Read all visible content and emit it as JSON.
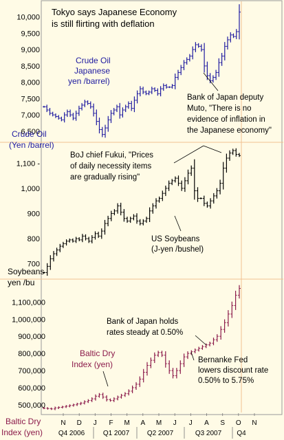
{
  "title_line1": "Tokyo says Japanese Economy",
  "title_line2": "is still flirting with deflation",
  "chart_data": [
    {
      "type": "candlestick",
      "name": "Crude Oil Japanese yen /barrel",
      "series_label": [
        "Crude Oil",
        "Japanese",
        "yen /barrel)"
      ],
      "ylabel": [
        "Crude Oil",
        "(Yen /barrel)"
      ],
      "ylim": [
        6350,
        10350
      ],
      "ticks": [
        6500,
        7000,
        7500,
        8000,
        8500,
        9000,
        9500,
        10000
      ],
      "tick_labels": [
        "6,500",
        "7,000",
        "7,500",
        "8,000",
        "8,500",
        "9,000",
        "9,500",
        "10,000"
      ],
      "values": [
        7250,
        7150,
        7050,
        7000,
        6950,
        6900,
        6850,
        7000,
        7100,
        7000,
        6900,
        7050,
        7200,
        7300,
        7400,
        7350,
        7250,
        7050,
        6800,
        6550,
        6400,
        6600,
        6850,
        7050,
        7150,
        7250,
        7000,
        7150,
        7250,
        7350,
        7200,
        7450,
        7650,
        7800,
        7700,
        7650,
        7700,
        7800,
        7750,
        7650,
        7800,
        7900,
        7850,
        7850,
        7900,
        8150,
        8300,
        8450,
        8600,
        8700,
        8800,
        9000,
        9150,
        9100,
        9000,
        8500,
        8200,
        8050,
        8150,
        8300,
        8600,
        8800,
        9100,
        9300,
        9450,
        9400,
        9550,
        10150
      ],
      "annotations": [
        [
          "Bank of Japan deputy",
          "Muto, \"There is no",
          "evidence of inflation in",
          "the Japanese economy\""
        ]
      ]
    },
    {
      "type": "candlestick",
      "name": "US Soybeans (J-yen /bushel)",
      "series_label": [
        "US Soybeans",
        "(J-yen /bushel)"
      ],
      "ylabel": [
        "Soybeans",
        "yen /bu"
      ],
      "ylim": [
        650,
        1180
      ],
      "ticks": [
        700,
        800,
        900,
        1000,
        1100
      ],
      "tick_labels": [
        "700",
        "800",
        "900",
        "1,000",
        "1,100 -"
      ],
      "values": [
        665,
        690,
        720,
        740,
        755,
        770,
        780,
        790,
        795,
        790,
        800,
        795,
        810,
        800,
        790,
        805,
        820,
        810,
        830,
        860,
        880,
        900,
        910,
        930,
        905,
        880,
        870,
        880,
        890,
        870,
        860,
        870,
        880,
        910,
        930,
        950,
        960,
        980,
        1000,
        1020,
        1030,
        1040,
        1020,
        1000,
        1030,
        1060,
        1080,
        990,
        960,
        960,
        940,
        930,
        950,
        970,
        990,
        1020,
        1080,
        1120,
        1140,
        1150,
        1135,
        1130
      ],
      "annotations": [
        [
          "BoJ chief Fukui, \"Prices",
          "of daily necessity items",
          "are gradually rising\""
        ]
      ]
    },
    {
      "type": "candlestick",
      "name": "Baltic Dry Index (yen)",
      "series_label": [
        "Baltic Dry",
        "Index (yen)"
      ],
      "ylabel": [
        "Baltic Dry",
        "Index (yen)"
      ],
      "ylim": [
        455000,
        1210000
      ],
      "ticks": [
        500000,
        600000,
        700000,
        800000,
        900000,
        1000000,
        1100000
      ],
      "tick_labels": [
        "500,000",
        "600,000",
        "700,000",
        "800,000",
        "900,000",
        "1,000,000",
        "1,100,000"
      ],
      "values": [
        480000,
        478000,
        476000,
        482000,
        485000,
        488000,
        492000,
        496000,
        500000,
        505000,
        510000,
        518000,
        525000,
        535000,
        550000,
        560000,
        545000,
        530000,
        525000,
        535000,
        545000,
        555000,
        565000,
        580000,
        600000,
        620000,
        650000,
        690000,
        730000,
        760000,
        790000,
        805000,
        790000,
        740000,
        700000,
        670000,
        700000,
        740000,
        780000,
        800000,
        810000,
        820000,
        830000,
        840000,
        850000,
        860000,
        880000,
        900000,
        940000,
        980000,
        1030000,
        1080000,
        1140000,
        1180000
      ],
      "annotations": [
        [
          "Bank of Japan holds",
          "rates steady at 0.50%"
        ],
        [
          "Bernanke Fed",
          "lowers discount rate",
          "0.50% to 5.75%"
        ]
      ]
    }
  ],
  "x_axis": {
    "months": [
      "N",
      "D",
      "J",
      "F",
      "M",
      "A",
      "M",
      "J",
      "J",
      "A",
      "S",
      "O",
      "N"
    ],
    "quarters": [
      "Q4 2006",
      "Q1 2007",
      "Q2 2007",
      "Q3 2007",
      "Q4"
    ]
  },
  "colors": {
    "background": "#fffbe6",
    "oil_series": "#1e1aa0",
    "soy_series": "#000000",
    "baltic_series": "#8b1a4a",
    "separator": "#f0c090",
    "label_blue": "#1e1aa0",
    "label_maroon": "#8b1a4a"
  }
}
